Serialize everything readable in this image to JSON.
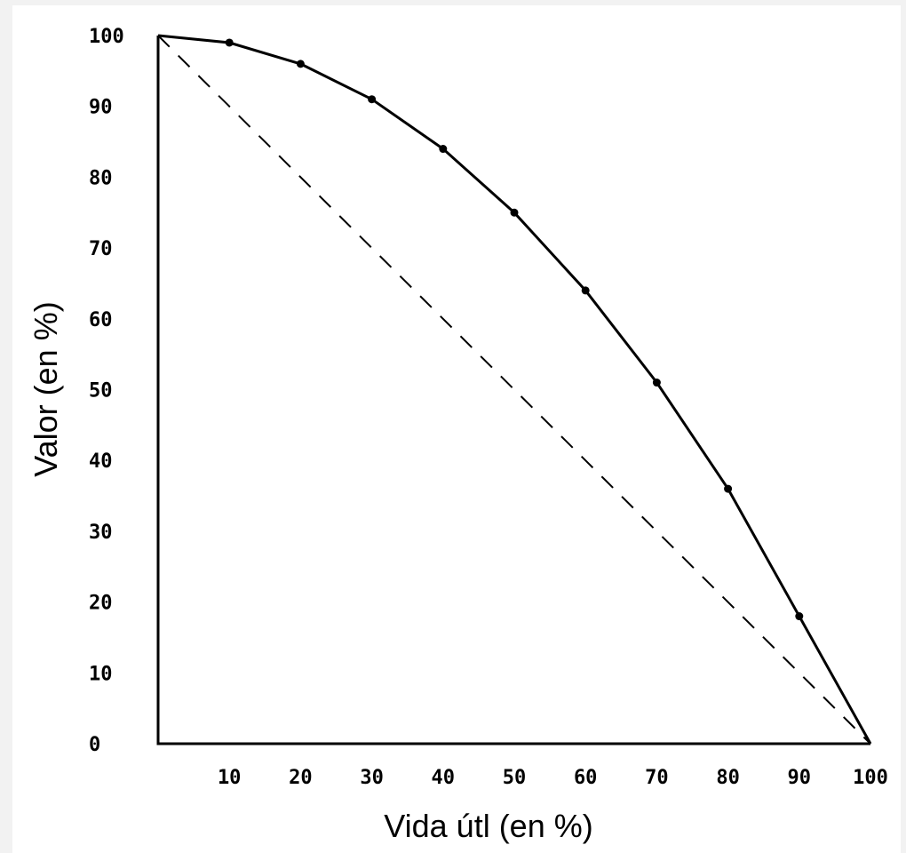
{
  "chart_data": {
    "type": "line",
    "xlabel": "Vida útl (en %)",
    "ylabel": "Valor (en %)",
    "xlim": [
      0,
      100
    ],
    "ylim": [
      0,
      100
    ],
    "x_ticks": [
      "10",
      "20",
      "30",
      "40",
      "50",
      "60",
      "70",
      "80",
      "90",
      "100"
    ],
    "y_ticks": [
      "0",
      "10",
      "20",
      "30",
      "40",
      "50",
      "60",
      "70",
      "80",
      "90",
      "100"
    ],
    "grid": false,
    "series": [
      {
        "style": "solid",
        "markers": true,
        "x": [
          0,
          10,
          20,
          30,
          40,
          50,
          60,
          70,
          80,
          90,
          100
        ],
        "y": [
          100,
          99,
          96,
          91,
          84,
          75,
          64,
          51,
          36,
          18,
          0
        ]
      },
      {
        "style": "dashed",
        "markers": false,
        "x": [
          0,
          100
        ],
        "y": [
          100,
          0
        ]
      }
    ]
  }
}
